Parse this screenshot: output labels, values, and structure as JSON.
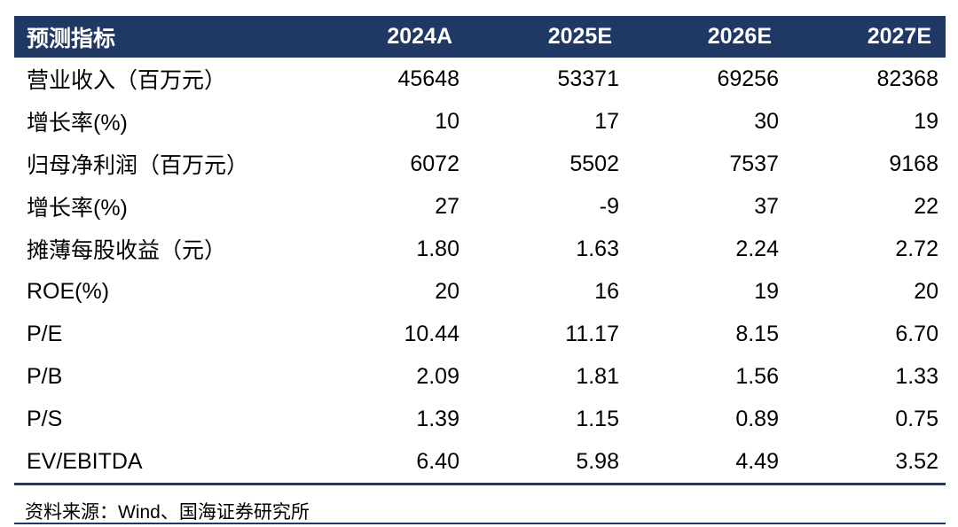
{
  "colors": {
    "header_bg": "#1F3864",
    "header_text": "#FFFFFF",
    "body_text": "#000000",
    "rule": "#1F3864"
  },
  "chart_data": {
    "type": "table",
    "columns": [
      "预测指标",
      "2024A",
      "2025E",
      "2026E",
      "2027E"
    ],
    "rows": [
      {
        "label": "营业收入（百万元）",
        "values": [
          "45648",
          "53371",
          "69256",
          "82368"
        ]
      },
      {
        "label": "增长率(%)",
        "values": [
          "10",
          "17",
          "30",
          "19"
        ]
      },
      {
        "label": "归母净利润（百万元）",
        "values": [
          "6072",
          "5502",
          "7537",
          "9168"
        ]
      },
      {
        "label": "增长率(%)",
        "values": [
          "27",
          "-9",
          "37",
          "22"
        ]
      },
      {
        "label": "摊薄每股收益（元）",
        "values": [
          "1.80",
          "1.63",
          "2.24",
          "2.72"
        ]
      },
      {
        "label": "ROE(%)",
        "values": [
          "20",
          "16",
          "19",
          "20"
        ]
      },
      {
        "label": "P/E",
        "values": [
          "10.44",
          "11.17",
          "8.15",
          "6.70"
        ]
      },
      {
        "label": "P/B",
        "values": [
          "2.09",
          "1.81",
          "1.56",
          "1.33"
        ]
      },
      {
        "label": "P/S",
        "values": [
          "1.39",
          "1.15",
          "0.89",
          "0.75"
        ]
      },
      {
        "label": "EV/EBITDA",
        "values": [
          "6.40",
          "5.98",
          "4.49",
          "3.52"
        ]
      }
    ],
    "source": "资料来源：Wind、国海证券研究所"
  }
}
